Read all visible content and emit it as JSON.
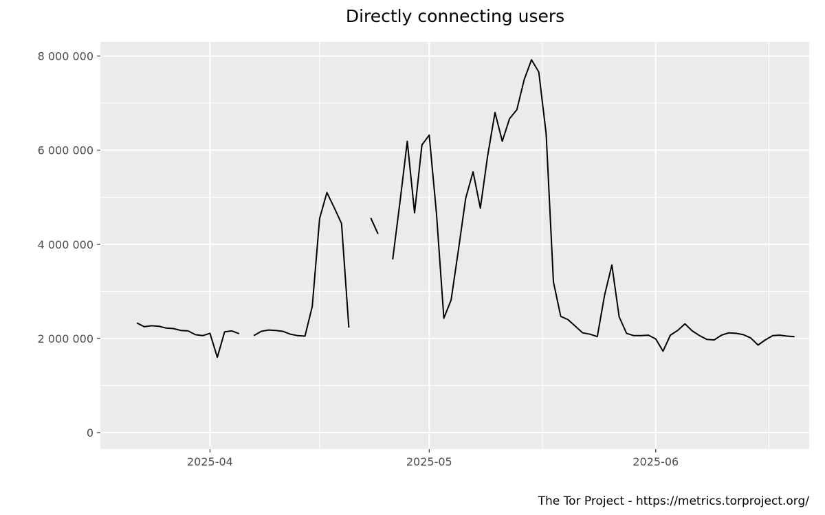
{
  "chart_data": {
    "type": "line",
    "title": "Directly connecting users",
    "xlabel": "",
    "ylabel": "",
    "caption": "The Tor Project - https://metrics.torproject.org/",
    "xlim": [
      "2025-03-17",
      "2025-06-22"
    ],
    "ylim": [
      -350000,
      8300000
    ],
    "x_ticks": [
      "2025-04-01",
      "2025-05-01",
      "2025-06-01"
    ],
    "x_tick_labels": [
      "2025-04",
      "2025-05",
      "2025-06"
    ],
    "y_ticks": [
      0,
      2000000,
      4000000,
      6000000,
      8000000
    ],
    "y_tick_labels": [
      "0",
      "2 000 000",
      "4 000 000",
      "6 000 000",
      "8 000 000"
    ],
    "grid": true,
    "background": "#ebebeb",
    "line_color": "#000000",
    "series": [
      {
        "points": [
          [
            "2025-03-22",
            2330000
          ],
          [
            "2025-03-23",
            2250000
          ],
          [
            "2025-03-24",
            2270000
          ],
          [
            "2025-03-25",
            2260000
          ],
          [
            "2025-03-26",
            2220000
          ],
          [
            "2025-03-27",
            2210000
          ],
          [
            "2025-03-28",
            2170000
          ],
          [
            "2025-03-29",
            2160000
          ],
          [
            "2025-03-30",
            2080000
          ],
          [
            "2025-03-31",
            2060000
          ],
          [
            "2025-04-01",
            2110000
          ],
          [
            "2025-04-02",
            1600000
          ],
          [
            "2025-04-03",
            2140000
          ],
          [
            "2025-04-04",
            2160000
          ],
          [
            "2025-04-05",
            2100000
          ],
          [
            "2025-04-06",
            null
          ],
          [
            "2025-04-07",
            2060000
          ],
          [
            "2025-04-08",
            2150000
          ],
          [
            "2025-04-09",
            2180000
          ],
          [
            "2025-04-10",
            2170000
          ],
          [
            "2025-04-11",
            2150000
          ],
          [
            "2025-04-12",
            2090000
          ],
          [
            "2025-04-13",
            2060000
          ],
          [
            "2025-04-14",
            2050000
          ],
          [
            "2025-04-15",
            2680000
          ],
          [
            "2025-04-16",
            4550000
          ],
          [
            "2025-04-17",
            5100000
          ],
          [
            "2025-04-18",
            4780000
          ],
          [
            "2025-04-19",
            4440000
          ],
          [
            "2025-04-20",
            2230000
          ],
          [
            "2025-04-21",
            null
          ],
          [
            "2025-04-22",
            null
          ],
          [
            "2025-04-23",
            4560000
          ],
          [
            "2025-04-24",
            4220000
          ],
          [
            "2025-04-25",
            null
          ],
          [
            "2025-04-26",
            3680000
          ],
          [
            "2025-04-27",
            4900000
          ],
          [
            "2025-04-28",
            6190000
          ],
          [
            "2025-04-29",
            4670000
          ],
          [
            "2025-04-30",
            6110000
          ],
          [
            "2025-05-01",
            6320000
          ],
          [
            "2025-05-02",
            4650000
          ],
          [
            "2025-05-03",
            2430000
          ],
          [
            "2025-05-04",
            2820000
          ],
          [
            "2025-05-05",
            3880000
          ],
          [
            "2025-05-06",
            4980000
          ],
          [
            "2025-05-07",
            5540000
          ],
          [
            "2025-05-08",
            4770000
          ],
          [
            "2025-05-09",
            5880000
          ],
          [
            "2025-05-10",
            6800000
          ],
          [
            "2025-05-11",
            6190000
          ],
          [
            "2025-05-12",
            6670000
          ],
          [
            "2025-05-13",
            6860000
          ],
          [
            "2025-05-14",
            7500000
          ],
          [
            "2025-05-15",
            7920000
          ],
          [
            "2025-05-16",
            7660000
          ],
          [
            "2025-05-17",
            6350000
          ],
          [
            "2025-05-18",
            3200000
          ],
          [
            "2025-05-19",
            2470000
          ],
          [
            "2025-05-20",
            2400000
          ],
          [
            "2025-05-21",
            2260000
          ],
          [
            "2025-05-22",
            2120000
          ],
          [
            "2025-05-23",
            2090000
          ],
          [
            "2025-05-24",
            2040000
          ],
          [
            "2025-05-25",
            2920000
          ],
          [
            "2025-05-26",
            3560000
          ],
          [
            "2025-05-27",
            2460000
          ],
          [
            "2025-05-28",
            2110000
          ],
          [
            "2025-05-29",
            2060000
          ],
          [
            "2025-05-30",
            2060000
          ],
          [
            "2025-05-31",
            2070000
          ],
          [
            "2025-06-01",
            1990000
          ],
          [
            "2025-06-02",
            1730000
          ],
          [
            "2025-06-03",
            2070000
          ],
          [
            "2025-06-04",
            2170000
          ],
          [
            "2025-06-05",
            2310000
          ],
          [
            "2025-06-06",
            2160000
          ],
          [
            "2025-06-07",
            2060000
          ],
          [
            "2025-06-08",
            1980000
          ],
          [
            "2025-06-09",
            1970000
          ],
          [
            "2025-06-10",
            2070000
          ],
          [
            "2025-06-11",
            2120000
          ],
          [
            "2025-06-12",
            2110000
          ],
          [
            "2025-06-13",
            2080000
          ],
          [
            "2025-06-14",
            2010000
          ],
          [
            "2025-06-15",
            1860000
          ],
          [
            "2025-06-16",
            1970000
          ],
          [
            "2025-06-17",
            2060000
          ],
          [
            "2025-06-18",
            2070000
          ],
          [
            "2025-06-19",
            2050000
          ],
          [
            "2025-06-20",
            2040000
          ]
        ]
      }
    ]
  }
}
